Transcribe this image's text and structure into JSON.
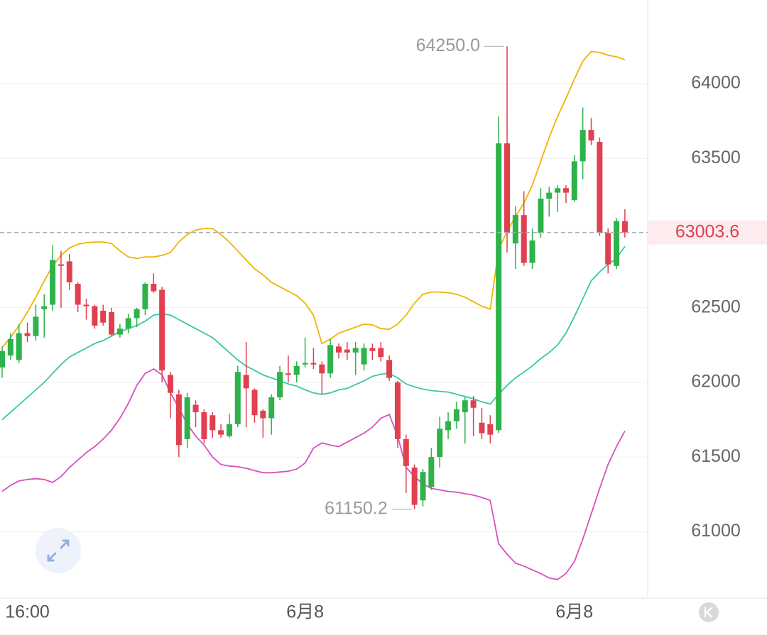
{
  "chart_data": {
    "type": "candlestick",
    "categories": [
      null,
      null,
      null,
      "16:00",
      null,
      null,
      null,
      null,
      null,
      null,
      null,
      null,
      null,
      null,
      null,
      null,
      null,
      null,
      null,
      null,
      null,
      null,
      null,
      null,
      null,
      null,
      null,
      null,
      null,
      null,
      null,
      null,
      null,
      null,
      null,
      null,
      "6月8",
      null,
      null,
      null,
      null,
      null,
      null,
      null,
      null,
      null,
      null,
      null,
      null,
      null,
      null,
      null,
      null,
      null,
      null,
      null,
      null,
      null,
      null,
      null,
      null,
      null,
      null,
      null,
      null,
      null,
      null,
      null,
      "6月8",
      null,
      null,
      null,
      null,
      null,
      null
    ],
    "open": [
      62100,
      62180,
      62150,
      62330,
      62310,
      62490,
      62520,
      62790,
      62810,
      62660,
      62520,
      62510,
      62480,
      62470,
      62320,
      62360,
      62430,
      62490,
      62660,
      62620,
      62050,
      61920,
      61620,
      61850,
      61800,
      61780,
      61680,
      61640,
      61720,
      62050,
      61950,
      61810,
      61760,
      61900,
      62060,
      62050,
      62120,
      62130,
      62120,
      62060,
      62240,
      62220,
      62200,
      62120,
      62230,
      62230,
      62150,
      62000,
      61620,
      61430,
      61210,
      61300,
      61500,
      61680,
      61740,
      61800,
      61880,
      61730,
      61720,
      61680,
      63600,
      62930,
      63120,
      62800,
      63000,
      63230,
      63270,
      63300,
      63220,
      63480,
      63690,
      63610,
      63000,
      62780,
      63080
    ],
    "high": [
      62240,
      62330,
      62390,
      62400,
      62520,
      62590,
      62920,
      62880,
      62860,
      62670,
      62560,
      62520,
      62520,
      62500,
      62390,
      62460,
      62500,
      62670,
      62730,
      62640,
      62070,
      61950,
      61930,
      61880,
      61820,
      61800,
      61720,
      61790,
      62110,
      62270,
      61960,
      61820,
      61920,
      62110,
      62180,
      62140,
      62300,
      62230,
      62140,
      62290,
      62260,
      62270,
      62270,
      62260,
      62260,
      62270,
      62180,
      62010,
      61650,
      61450,
      61420,
      61560,
      61770,
      61800,
      61870,
      61900,
      61910,
      61830,
      61780,
      63780,
      64250,
      63180,
      63280,
      63030,
      63300,
      63310,
      63320,
      63320,
      63520,
      63840,
      63770,
      63640,
      63030,
      63100,
      63160
    ],
    "low": [
      62030,
      62150,
      62130,
      62270,
      62280,
      62300,
      62480,
      62500,
      62620,
      62470,
      62420,
      62360,
      62380,
      62310,
      62300,
      62330,
      62370,
      62450,
      62600,
      62000,
      61760,
      61500,
      61560,
      61700,
      61590,
      61630,
      61630,
      61630,
      61700,
      61700,
      61730,
      61630,
      61650,
      61880,
      62000,
      62000,
      62100,
      62090,
      61920,
      62030,
      62160,
      62150,
      62050,
      62080,
      62150,
      62140,
      62010,
      61560,
      61260,
      61150.2,
      61170,
      61280,
      61430,
      61620,
      61690,
      61590,
      61640,
      61620,
      61590,
      61660,
      62870,
      62760,
      62780,
      62760,
      62970,
      63110,
      63140,
      63200,
      63210,
      63360,
      63590,
      62980,
      62730,
      62760,
      62970
    ],
    "close": [
      62210,
      62290,
      62330,
      62310,
      62440,
      62510,
      62820,
      62780,
      62670,
      62520,
      62510,
      62380,
      62400,
      62320,
      62360,
      62430,
      62490,
      62660,
      62610,
      62080,
      61930,
      61580,
      61900,
      61800,
      61620,
      61680,
      61650,
      61720,
      62070,
      61960,
      61780,
      61760,
      61900,
      62070,
      62050,
      62110,
      62130,
      62120,
      62060,
      62250,
      62200,
      62200,
      62230,
      62230,
      62210,
      62170,
      62030,
      61620,
      61440,
      61180,
      61400,
      61500,
      61690,
      61740,
      61820,
      61880,
      61830,
      61660,
      61650,
      63600,
      63000,
      63120,
      62800,
      62950,
      63230,
      63270,
      63300,
      63270,
      63480,
      63690,
      63620,
      63000,
      62790,
      63080,
      63003.6
    ],
    "up_color": "#2eb24a",
    "down_color": "#e0404f",
    "series": [
      {
        "color": "#f0b400",
        "values": [
          62235,
          62300,
          62380,
          62470,
          62570,
          62680,
          62780,
          62850,
          62900,
          62925,
          62935,
          62940,
          62940,
          62930,
          62880,
          62840,
          62830,
          62840,
          62840,
          62850,
          62870,
          62940,
          62990,
          63020,
          63030,
          63030,
          62990,
          62940,
          62880,
          62820,
          62760,
          62720,
          62670,
          62640,
          62610,
          62580,
          62530,
          62450,
          62260,
          62290,
          62330,
          62350,
          62370,
          62390,
          62385,
          62360,
          62355,
          62390,
          62450,
          62530,
          62590,
          62605,
          62605,
          62600,
          62590,
          62570,
          62540,
          62510,
          62490,
          62890,
          63010,
          63110,
          63200,
          63320,
          63480,
          63640,
          63780,
          63900,
          64030,
          64150,
          64215,
          64210,
          64190,
          64180,
          64160
        ]
      },
      {
        "color": "#35c9a5",
        "values": [
          61750,
          61800,
          61850,
          61900,
          61950,
          62000,
          62060,
          62120,
          62170,
          62200,
          62230,
          62260,
          62280,
          62310,
          62340,
          62360,
          62380,
          62410,
          62450,
          62460,
          62450,
          62420,
          62390,
          62360,
          62330,
          62300,
          62250,
          62200,
          62150,
          62110,
          62080,
          62050,
          62030,
          62010,
          61990,
          61975,
          61950,
          61930,
          61920,
          61930,
          61950,
          61960,
          61985,
          62010,
          62040,
          62055,
          62060,
          62030,
          61990,
          61970,
          61955,
          61945,
          61940,
          61935,
          61920,
          61905,
          61890,
          61870,
          61855,
          61920,
          61980,
          62030,
          62070,
          62110,
          62160,
          62200,
          62250,
          62330,
          62440,
          62560,
          62680,
          62740,
          62790,
          62830,
          62910
        ]
      },
      {
        "color": "#d94fc0",
        "values": [
          61270,
          61310,
          61340,
          61350,
          61355,
          61350,
          61330,
          61370,
          61430,
          61480,
          61530,
          61570,
          61620,
          61680,
          61760,
          61860,
          61980,
          62060,
          62090,
          62050,
          61930,
          61830,
          61720,
          61640,
          61580,
          61500,
          61450,
          61440,
          61435,
          61425,
          61410,
          61395,
          61395,
          61400,
          61405,
          61420,
          61460,
          61560,
          61595,
          61580,
          61570,
          61600,
          61630,
          61660,
          61700,
          61760,
          61785,
          61640,
          61430,
          61370,
          61320,
          61290,
          61280,
          61270,
          61265,
          61255,
          61245,
          61230,
          61210,
          60920,
          60850,
          60790,
          60770,
          60745,
          60720,
          60690,
          60680,
          60720,
          60800,
          60950,
          61120,
          61290,
          61450,
          61570,
          61675
        ]
      }
    ],
    "annotations": [
      {
        "value": 64250,
        "label": "64250.0"
      },
      {
        "value": 61150.2,
        "label": "61150.2"
      }
    ],
    "last_price": {
      "value": 63003.6,
      "label": "63003.6"
    },
    "ylim": [
      60570,
      64560
    ],
    "yticks": [
      61000,
      61500,
      62000,
      62500,
      63500,
      64000
    ],
    "grid": true
  }
}
